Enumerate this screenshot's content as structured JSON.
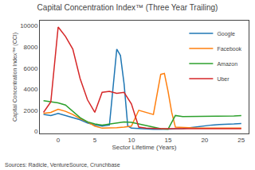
{
  "chart_data": {
    "type": "line",
    "title": "Capital Concentration Index™ (Three Year Trailing)",
    "x_label": "Sector Lifetime (Years)",
    "y_label": "Capital Concentration Index™ (CCI)",
    "annotations": [
      "Sources: Radicle, VentureSource, Crunchbase"
    ],
    "xlim": [
      -2.5,
      26
    ],
    "ylim": [
      -200,
      10500
    ],
    "xticks": [
      0,
      5,
      10,
      15,
      20,
      25
    ],
    "yticks": [
      0,
      2000,
      4000,
      6000,
      8000,
      10000
    ],
    "grid": false,
    "legend": "upper right",
    "series": [
      {
        "name": "Google",
        "x": [
          -2,
          -1,
          0,
          1,
          2,
          3,
          4,
          5,
          6,
          7,
          8,
          8.5,
          9,
          9.5,
          10,
          11,
          12,
          13,
          14,
          15,
          16,
          17,
          18,
          19,
          20,
          21,
          22,
          23,
          24,
          25
        ],
        "values": [
          1600,
          1500,
          1700,
          1500,
          1300,
          1100,
          800,
          600,
          500,
          600,
          7800,
          7200,
          4500,
          500,
          300,
          250,
          200,
          200,
          200,
          200,
          200,
          250,
          350,
          450,
          550,
          600,
          650,
          650,
          700,
          750
        ]
      },
      {
        "name": "Facebook",
        "x": [
          -2,
          -1,
          0,
          1,
          2,
          3,
          4,
          5,
          6,
          7,
          8,
          9,
          10,
          11,
          12,
          13,
          14,
          14.5,
          15,
          15.5,
          16,
          17,
          18,
          19,
          20,
          21,
          22,
          23,
          24,
          25
        ],
        "values": [
          1700,
          1800,
          2100,
          1900,
          1600,
          1200,
          900,
          500,
          300,
          300,
          350,
          400,
          500,
          2000,
          1800,
          1600,
          5400,
          5500,
          3800,
          1800,
          400,
          350,
          300,
          300,
          300,
          300,
          300,
          300,
          300,
          300
        ]
      },
      {
        "name": "Amazon",
        "x": [
          -2,
          -1,
          0,
          1,
          2,
          3,
          4,
          5,
          6,
          7,
          8,
          9,
          10,
          11,
          12,
          13,
          14,
          15,
          16,
          17,
          18,
          19,
          20,
          21,
          22,
          23,
          24,
          25
        ],
        "values": [
          2900,
          2800,
          2700,
          2500,
          1900,
          1300,
          900,
          700,
          600,
          700,
          800,
          900,
          850,
          700,
          600,
          400,
          250,
          200,
          1500,
          1400,
          1400,
          1400,
          1400,
          1400,
          1450,
          1400,
          1450,
          1500
        ]
      },
      {
        "name": "Uber",
        "x": [
          -2,
          -1,
          0,
          1,
          2,
          3,
          4,
          5,
          6,
          7,
          8,
          9,
          10,
          11,
          12,
          13,
          14,
          15,
          16,
          17,
          18,
          19,
          20,
          21,
          22,
          23,
          24,
          25
        ],
        "values": [
          1800,
          2800,
          9900,
          9000,
          7800,
          5000,
          3000,
          1800,
          3700,
          3800,
          3600,
          3700,
          2600,
          400,
          300,
          250,
          250,
          250,
          250,
          250,
          250,
          250,
          250,
          250,
          250,
          250,
          250,
          250
        ]
      }
    ]
  }
}
